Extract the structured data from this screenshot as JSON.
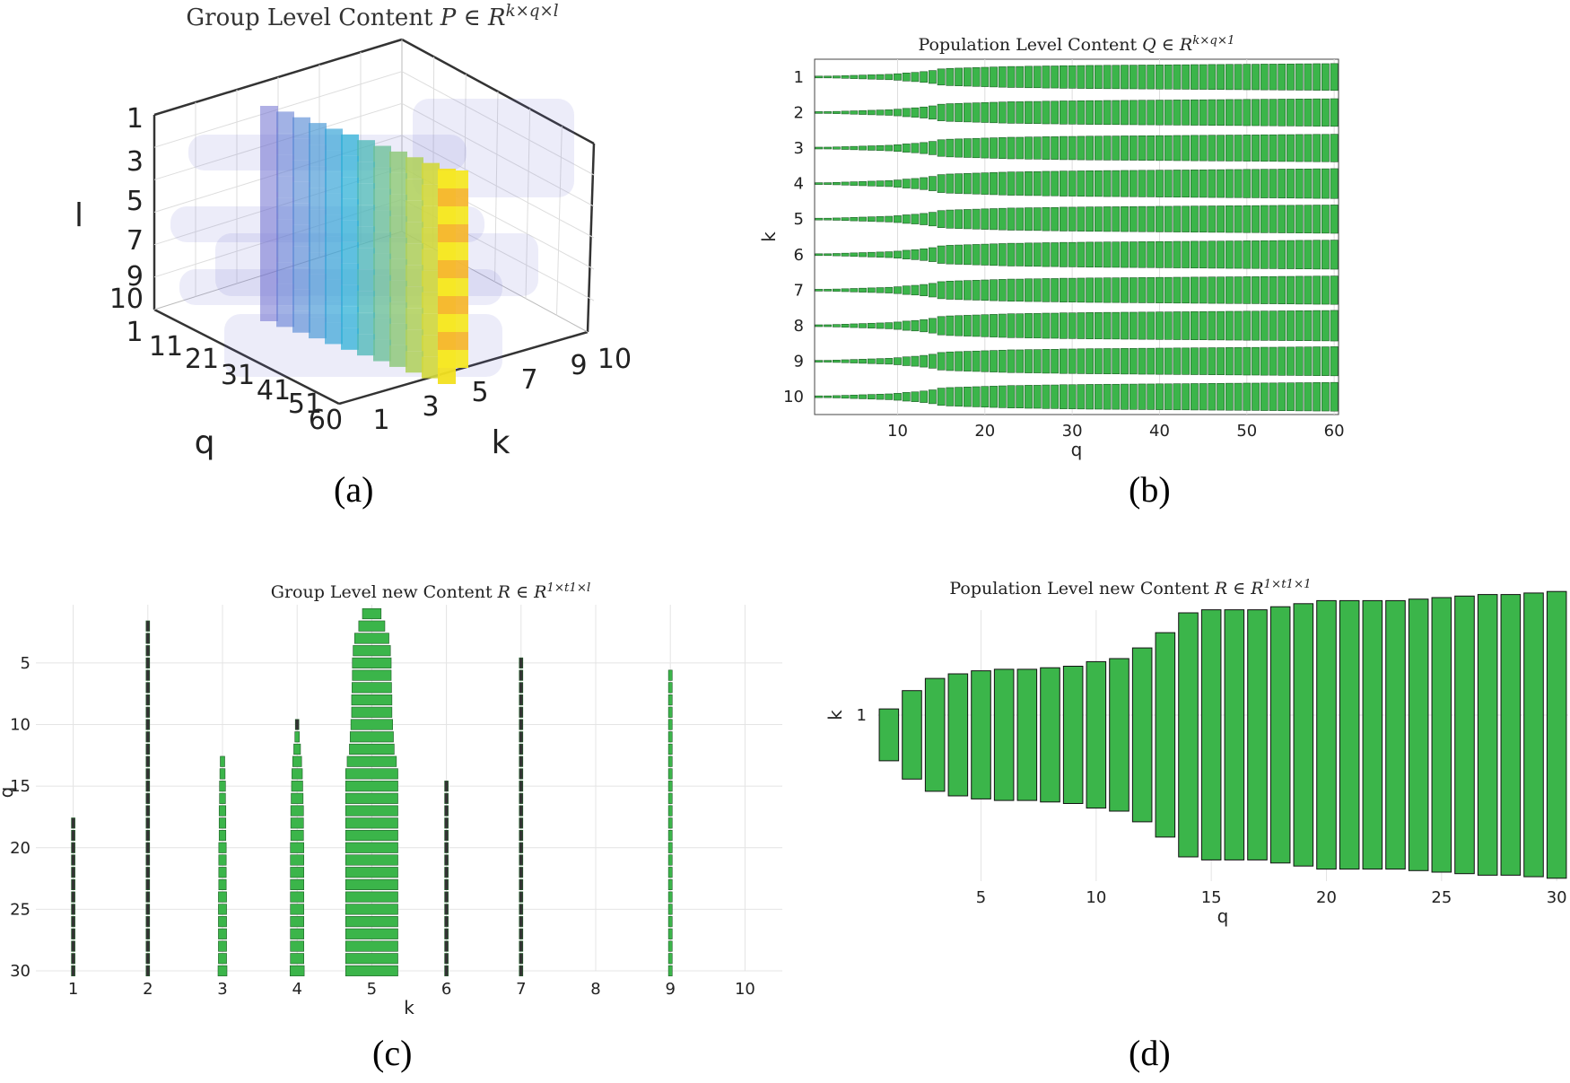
{
  "captions": {
    "a": "(a)",
    "b": "(b)",
    "c": "(c)",
    "d": "(d)"
  },
  "chart_data": [
    {
      "id": "a",
      "type": "heatmap",
      "subtype": "3d-volume",
      "title": "Group Level Content P ∈ R^(k×q×l)",
      "title_text": "Group Level Content",
      "title_math": "P ∈ R",
      "title_sup": "k×q×l",
      "xlabel": "k",
      "ylabel": "q",
      "zlabel": "l",
      "k_ticks": [
        "1",
        "3",
        "5",
        "7",
        "9",
        "10"
      ],
      "q_ticks": [
        "1",
        "11",
        "21",
        "31",
        "41",
        "51",
        "60"
      ],
      "l_ticks": [
        "1",
        "3",
        "5",
        "7",
        "9",
        "10"
      ],
      "colors": {
        "low": "#6f6fd0",
        "mid": "#2ab0d8",
        "high": "#f2e020"
      }
    },
    {
      "id": "b",
      "type": "bar",
      "subtype": "horizontal-bar-per-row",
      "title": "Population Level Content Q ∈ R^(k×q×1)",
      "title_text": "Population Level Content",
      "title_math": "Q ∈ R",
      "title_sup": "k×q×1",
      "xlabel": "q",
      "ylabel": "k",
      "xlim": [
        0.5,
        60.5
      ],
      "xticks": [
        10,
        20,
        30,
        40,
        50,
        60
      ],
      "yticks": [
        1,
        2,
        3,
        4,
        5,
        6,
        7,
        8,
        9,
        10
      ],
      "q_count": 60,
      "row_peak": [
        0.72,
        0.74,
        0.74,
        0.8,
        0.76,
        0.78,
        0.76,
        0.82,
        0.78,
        0.77
      ],
      "value_profile": [
        0.04,
        0.06,
        0.08,
        0.1,
        0.12,
        0.14,
        0.16,
        0.18,
        0.2,
        0.24,
        0.3,
        0.34,
        0.4,
        0.48,
        0.6,
        0.64,
        0.66,
        0.68,
        0.7,
        0.72,
        0.74,
        0.76,
        0.78,
        0.78,
        0.8,
        0.8,
        0.82,
        0.82,
        0.84,
        0.84,
        0.85,
        0.86,
        0.86,
        0.87,
        0.87,
        0.88,
        0.88,
        0.89,
        0.89,
        0.9,
        0.9,
        0.91,
        0.91,
        0.92,
        0.92,
        0.93,
        0.93,
        0.94,
        0.94,
        0.95,
        0.95,
        0.96,
        0.96,
        0.97,
        0.97,
        0.98,
        0.98,
        0.99,
        0.99,
        1.0
      ],
      "colors": {
        "bar": "#3bb54a"
      }
    },
    {
      "id": "c",
      "type": "bar",
      "subtype": "horizontal-bar-columns",
      "title": "Group Level new Content R ∈ R^(1×t1×l)",
      "title_text": "Group Level new Content",
      "title_math": "R ∈ R",
      "title_sup": "1×t1×l",
      "xlabel": "k",
      "ylabel": "q",
      "xlim": [
        0.5,
        10.5
      ],
      "ylim": [
        1,
        30
      ],
      "xticks": [
        1,
        2,
        3,
        4,
        5,
        6,
        7,
        8,
        9,
        10
      ],
      "yticks": [
        5,
        10,
        15,
        20,
        25,
        30
      ],
      "series": [
        {
          "k": 1,
          "q_start": 18,
          "widths": [
            0.02
          ]
        },
        {
          "k": 2,
          "q_start": 2,
          "widths": [
            0.03
          ]
        },
        {
          "k": 3,
          "q_start": 13,
          "widths": [
            0.06,
            0.07,
            0.08,
            0.08,
            0.09,
            0.09,
            0.09,
            0.1,
            0.1,
            0.1,
            0.1,
            0.11,
            0.11,
            0.11,
            0.11,
            0.11,
            0.11,
            0.12
          ]
        },
        {
          "k": 4,
          "q_start": 10,
          "widths": [
            0.04,
            0.06,
            0.09,
            0.12,
            0.14,
            0.15,
            0.16,
            0.17,
            0.17,
            0.17,
            0.18,
            0.18,
            0.18,
            0.18,
            0.18,
            0.18,
            0.18,
            0.18,
            0.18,
            0.18,
            0.19
          ]
        },
        {
          "k": 5,
          "q_start": 1,
          "widths": [
            0.25,
            0.35,
            0.46,
            0.5,
            0.52,
            0.52,
            0.53,
            0.54,
            0.54,
            0.56,
            0.58,
            0.6,
            0.66,
            0.7,
            0.7,
            0.7,
            0.7,
            0.7,
            0.7,
            0.7,
            0.7,
            0.7,
            0.7,
            0.7,
            0.7,
            0.7,
            0.7,
            0.7,
            0.7,
            0.7
          ]
        },
        {
          "k": 6,
          "q_start": 15,
          "widths": [
            0.03
          ]
        },
        {
          "k": 7,
          "q_start": 5,
          "widths": [
            0.03
          ]
        },
        {
          "k": 9,
          "q_start": 6,
          "widths": [
            0.05
          ]
        }
      ],
      "colors": {
        "bar": "#3bb54a"
      }
    },
    {
      "id": "d",
      "type": "bar",
      "subtype": "vertical-bar-centered",
      "title": "Population Level new Content R ∈ R^(1×t1×1)",
      "title_text": "Population Level new Content",
      "title_math": "R ∈ R",
      "title_sup": "1×t1×1",
      "xlabel": "q",
      "ylabel": "k",
      "xlim": [
        0.5,
        30.5
      ],
      "xticks": [
        5,
        10,
        15,
        20,
        25,
        30
      ],
      "yticks": [
        1
      ],
      "categories": [
        1,
        2,
        3,
        4,
        5,
        6,
        7,
        8,
        9,
        10,
        11,
        12,
        13,
        14,
        15,
        16,
        17,
        18,
        19,
        20,
        21,
        22,
        23,
        24,
        25,
        26,
        27,
        28,
        29,
        30
      ],
      "values": [
        0.17,
        0.29,
        0.37,
        0.4,
        0.42,
        0.43,
        0.43,
        0.44,
        0.45,
        0.48,
        0.5,
        0.57,
        0.67,
        0.8,
        0.82,
        0.82,
        0.82,
        0.84,
        0.86,
        0.88,
        0.88,
        0.88,
        0.88,
        0.89,
        0.9,
        0.91,
        0.92,
        0.92,
        0.93,
        0.94
      ],
      "colors": {
        "bar": "#3bb54a"
      }
    }
  ]
}
